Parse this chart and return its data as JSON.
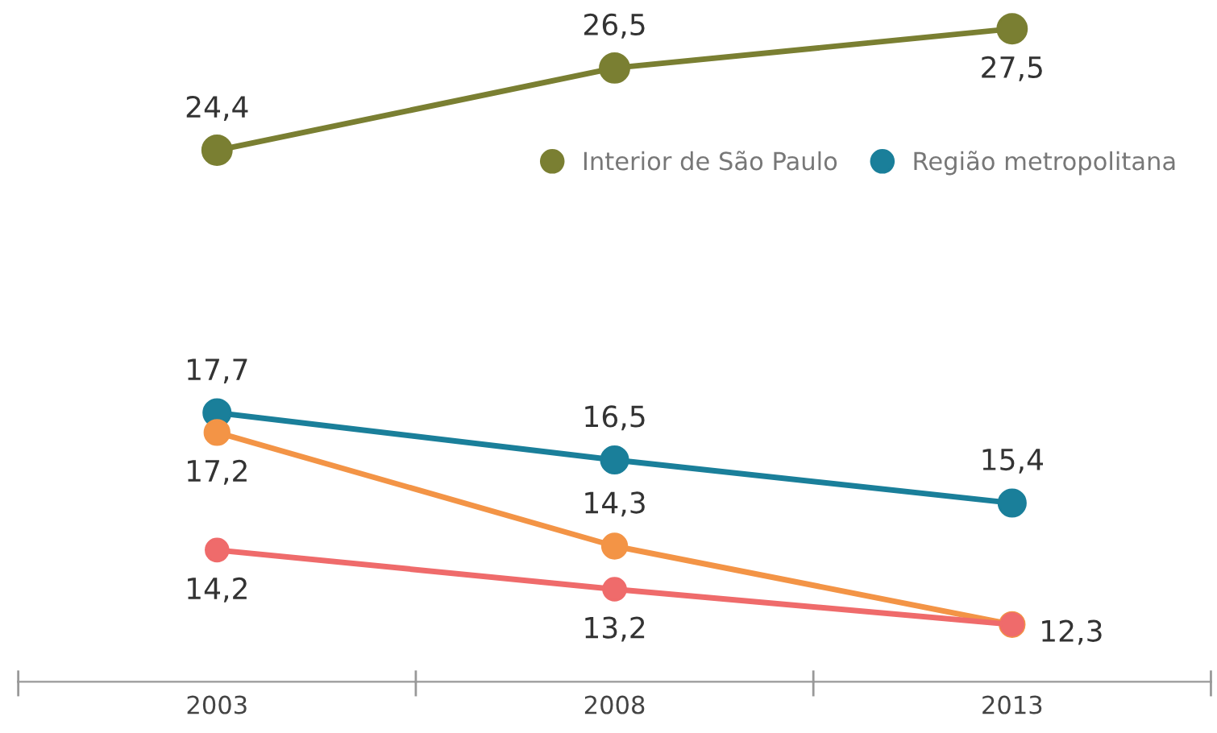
{
  "chart_data": {
    "type": "line",
    "categories": [
      "2003",
      "2008",
      "2013"
    ],
    "marker": "circle",
    "legend": "top right",
    "grid": false,
    "tick_labels": "x",
    "series": [
      {
        "name": "Interior de São Paulo",
        "color": "#7a7f32",
        "values": [
          24.4,
          26.5,
          27.5
        ],
        "value_labels": [
          "24,4",
          "26,5",
          "27,5"
        ]
      },
      {
        "name": "Região metropolitana",
        "color": "#1a7f9a",
        "values": [
          17.7,
          16.5,
          15.4
        ],
        "value_labels": [
          "17,7",
          "16,5",
          "15,4"
        ]
      },
      {
        "color": "#f39446",
        "values": [
          17.2,
          14.3,
          12.3
        ],
        "value_labels": [
          "17,2",
          "14,3",
          null
        ]
      },
      {
        "color": "#ef6b6b",
        "values": [
          14.2,
          13.2,
          12.3
        ],
        "value_labels": [
          "14,2",
          "13,2",
          "12,3"
        ]
      }
    ]
  }
}
